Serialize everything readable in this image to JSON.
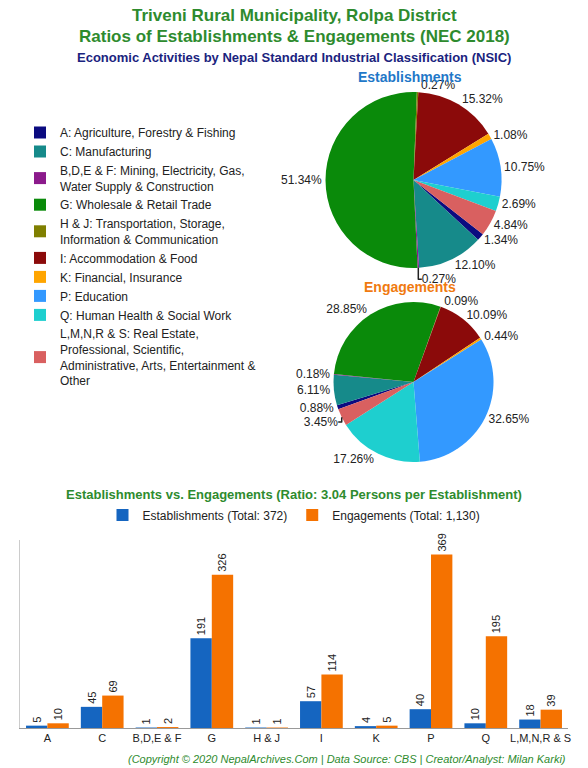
{
  "header": {
    "title": [
      "Triveni Rural Municipality, Rolpa District",
      "Ratios of Establishments & Engagements (NEC 2018)"
    ],
    "subtitle": "Economic Activities by Nepal Standard Industrial Classification (NSIC)"
  },
  "chart_data": [
    {
      "type": "pie",
      "title": "Establishments",
      "categories": [
        "A: Agriculture, Forestry & Fishing",
        "C: Manufacturing",
        "B,D,E & F: Mining, Electricity, Gas, Water Supply & Construction",
        "G: Wholesale & Retail Trade",
        "H & J: Transportation, Storage, Information & Communication",
        "I: Accommodation & Food",
        "K: Financial, Insurance",
        "P: Education",
        "Q: Human Health & Social Work",
        "L,M,N,R & S: Real Estate, Professional, Scientific, Administrative, Arts, Entertainment & Other"
      ],
      "values": [
        1.34,
        12.1,
        0.27,
        51.34,
        0.27,
        15.32,
        1.08,
        10.75,
        2.69,
        4.84
      ],
      "value_labels": [
        "1.34%",
        "12.10%",
        "0.27%",
        "51.34%",
        "0.27%",
        "15.32%",
        "1.08%",
        "10.75%",
        "2.69%",
        "4.84%"
      ],
      "colors": [
        "#0b0b80",
        "#168a8a",
        "#8b1a8b",
        "#0a8a0a",
        "#7f7f00",
        "#8b0a0a",
        "#ffa500",
        "#3399ff",
        "#1ecfcf",
        "#d96060"
      ],
      "data_labels": true,
      "legend": "left"
    },
    {
      "type": "pie",
      "title": "Engagements",
      "categories": [
        "A: Agriculture, Forestry & Fishing",
        "C: Manufacturing",
        "B,D,E & F: Mining, Electricity, Gas, Water Supply & Construction",
        "G: Wholesale & Retail Trade",
        "H & J: Transportation, Storage, Information & Communication",
        "I: Accommodation & Food",
        "K: Financial, Insurance",
        "P: Education",
        "Q: Human Health & Social Work",
        "L,M,N,R & S: Real Estate, Professional, Scientific, Administrative, Arts, Entertainment & Other"
      ],
      "values": [
        0.88,
        6.11,
        0.18,
        28.85,
        0.09,
        10.09,
        0.44,
        32.65,
        17.26,
        3.45
      ],
      "value_labels": [
        "0.88%",
        "6.11%",
        "0.18%",
        "28.85%",
        "0.09%",
        "10.09%",
        "0.44%",
        "32.65%",
        "17.26%",
        "3.45%"
      ],
      "colors": [
        "#0b0b80",
        "#168a8a",
        "#8b1a8b",
        "#0a8a0a",
        "#7f7f00",
        "#8b0a0a",
        "#ffa500",
        "#3399ff",
        "#1ecfcf",
        "#d96060"
      ],
      "data_labels": true
    },
    {
      "type": "bar",
      "title": "Establishments vs. Engagements (Ratio: 3.04 Persons per Establishment)",
      "categories": [
        "A",
        "C",
        "B,D,E & F",
        "G",
        "H & J",
        "I",
        "K",
        "P",
        "Q",
        "L,M,N,R & S"
      ],
      "series": [
        {
          "name": "Establishments (Total: 372)",
          "color": "#1565c0",
          "values": [
            5,
            45,
            1,
            191,
            1,
            57,
            4,
            40,
            10,
            18
          ]
        },
        {
          "name": "Engagements (Total: 1,130)",
          "color": "#f57200",
          "values": [
            10,
            69,
            2,
            326,
            1,
            114,
            5,
            369,
            195,
            39
          ]
        }
      ],
      "ylim": [
        0,
        400
      ],
      "tick_labels": "x",
      "grid": false,
      "data_labels": true,
      "legend": "top"
    }
  ],
  "footer": "(Copyright © 2020 NepalArchives.Com | Data Source: CBS | Creator/Analyst: Milan Karki)"
}
